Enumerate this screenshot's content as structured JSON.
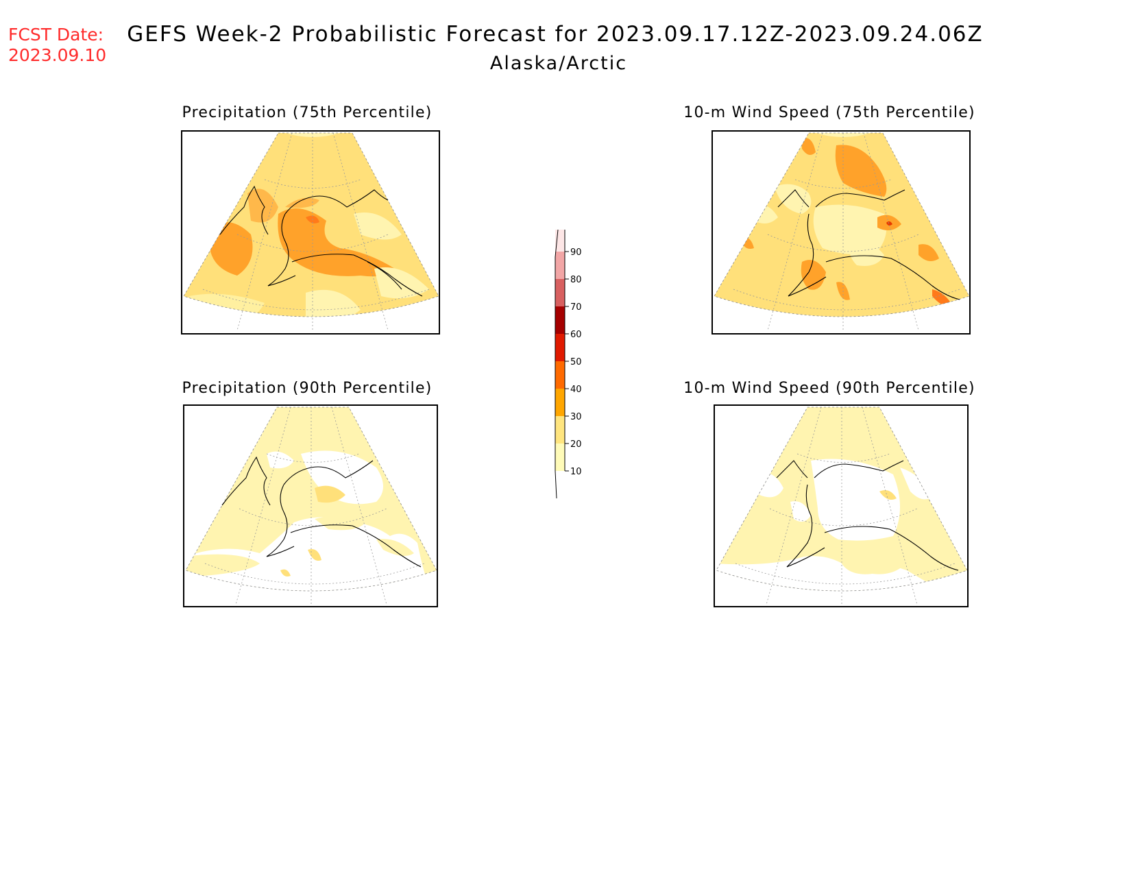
{
  "header": {
    "fcst_label": "FCST Date:",
    "fcst_date": "2023.09.10",
    "title": "GEFS Week-2 Probabilistic Forecast for 2023.09.17.12Z-2023.09.24.06Z",
    "subtitle": "Alaska/Arctic"
  },
  "panels": [
    {
      "id": "precip-75",
      "title": "Precipitation (75th Percentile)"
    },
    {
      "id": "wind-75",
      "title": "10-m Wind Speed (75th Percentile)"
    },
    {
      "id": "precip-90",
      "title": "Precipitation (90th Percentile)"
    },
    {
      "id": "wind-90",
      "title": "10-m Wind Speed (90th Percentile)"
    }
  ],
  "colorbar": {
    "levels": [
      "10",
      "20",
      "30",
      "40",
      "50",
      "60",
      "70",
      "80",
      "90"
    ],
    "colors": [
      "#fffbb8",
      "#ffe57f",
      "#ffa600",
      "#ff6a00",
      "#e01a00",
      "#a50000",
      "#d86060",
      "#f2a6a6",
      "#fde6e6"
    ]
  },
  "colors": {
    "fcst": "#ff2a2a",
    "light": "#fff4b0",
    "mid": "#ffe07a",
    "high": "#ffa22a",
    "higher": "#ff7a1a",
    "peak": "#e63a00"
  }
}
